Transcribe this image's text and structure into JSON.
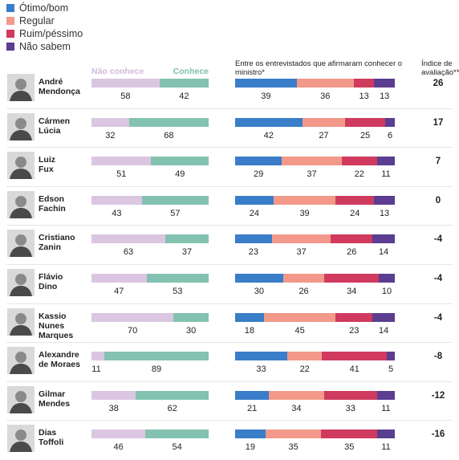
{
  "legend": [
    {
      "label": "Ótimo/bom",
      "color": "#3a7dc9"
    },
    {
      "label": "Regular",
      "color": "#f2998a"
    },
    {
      "label": "Ruim/péssimo",
      "color": "#cf3a5e"
    },
    {
      "label": "Não sabem",
      "color": "#5b3d91"
    }
  ],
  "headers": {
    "nao_conhece": "Não conhece",
    "conhece": "Conhece",
    "entrevistados": "Entre os entrevistados que afirmaram conhecer o ministro*",
    "indice": "Índice de avaliação**"
  },
  "colors": {
    "nao_conhece": "#dbc6e2",
    "conhece": "#83c2b0"
  },
  "chart_data": [
    {
      "type": "bar",
      "orientation": "horizontal-stacked",
      "series_names": [
        "Não conhece",
        "Conhece"
      ],
      "categories": [
        "André Mendonça",
        "Cármen Lúcia",
        "Luiz Fux",
        "Edson Fachin",
        "Cristiano Zanin",
        "Flávio Dino",
        "Kassio Nunes Marques",
        "Alexandre de Moraes",
        "Gilmar Mendes",
        "Dias Toffoli"
      ],
      "series": [
        {
          "name": "Não conhece",
          "values": [
            58,
            32,
            51,
            43,
            63,
            47,
            70,
            11,
            38,
            46
          ]
        },
        {
          "name": "Conhece",
          "values": [
            42,
            68,
            49,
            57,
            37,
            53,
            30,
            89,
            62,
            54
          ]
        }
      ]
    },
    {
      "type": "bar",
      "orientation": "horizontal-stacked",
      "title": "Entre os entrevistados que afirmaram conhecer o ministro*",
      "categories": [
        "André Mendonça",
        "Cármen Lúcia",
        "Luiz Fux",
        "Edson Fachin",
        "Cristiano Zanin",
        "Flávio Dino",
        "Kassio Nunes Marques",
        "Alexandre de Moraes",
        "Gilmar Mendes",
        "Dias Toffoli"
      ],
      "series": [
        {
          "name": "Ótimo/bom",
          "values": [
            39,
            42,
            29,
            24,
            23,
            30,
            18,
            33,
            21,
            19
          ]
        },
        {
          "name": "Regular",
          "values": [
            36,
            27,
            37,
            39,
            37,
            26,
            45,
            22,
            34,
            35
          ]
        },
        {
          "name": "Ruim/péssimo",
          "values": [
            13,
            25,
            22,
            24,
            26,
            34,
            23,
            41,
            33,
            35
          ]
        },
        {
          "name": "Não sabem",
          "values": [
            13,
            6,
            11,
            13,
            14,
            10,
            14,
            5,
            11,
            11
          ]
        }
      ]
    },
    {
      "type": "table",
      "title": "Índice de avaliação**",
      "categories": [
        "André Mendonça",
        "Cármen Lúcia",
        "Luiz Fux",
        "Edson Fachin",
        "Cristiano Zanin",
        "Flávio Dino",
        "Kassio Nunes Marques",
        "Alexandre de Moraes",
        "Gilmar Mendes",
        "Dias Toffoli"
      ],
      "values": [
        "26",
        "17",
        "7",
        "0",
        "-4",
        "-4",
        "-4",
        "-8",
        "-12",
        "-16"
      ]
    }
  ],
  "rows": [
    {
      "name_line1": "André",
      "name_line2": "Mendonça"
    },
    {
      "name_line1": "Cármen",
      "name_line2": "Lúcia"
    },
    {
      "name_line1": "Luiz",
      "name_line2": "Fux"
    },
    {
      "name_line1": "Edson",
      "name_line2": "Fachin"
    },
    {
      "name_line1": "Cristiano",
      "name_line2": "Zanin"
    },
    {
      "name_line1": "Flávio",
      "name_line2": "Dino"
    },
    {
      "name_line1": "Kassio Nunes",
      "name_line2": "Marques"
    },
    {
      "name_line1": "Alexandre",
      "name_line2": "de Moraes"
    },
    {
      "name_line1": "Gilmar",
      "name_line2": "Mendes"
    },
    {
      "name_line1": "Dias",
      "name_line2": "Toffoli"
    }
  ]
}
